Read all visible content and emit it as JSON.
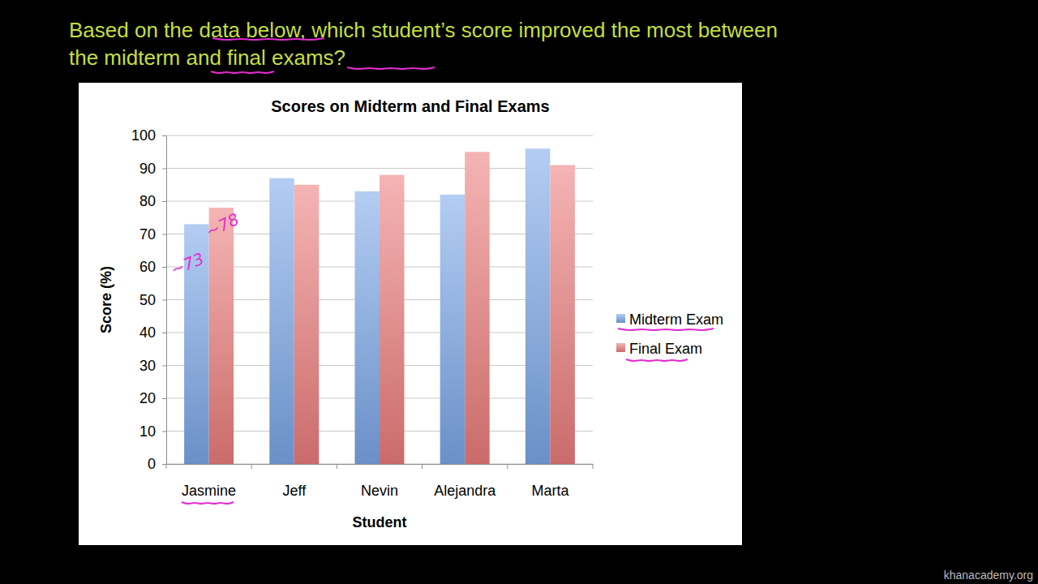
{
  "question": "Based on the data below, which student’s score improved the most between the midterm and final exams?",
  "watermark": "khanacademy.org",
  "chart_data": {
    "type": "bar",
    "title": "Scores on Midterm and Final Exams",
    "x_label": "Student",
    "y_label": "Score (%)",
    "categories": [
      "Jasmine",
      "Jeff",
      "Nevin",
      "Alejandra",
      "Marta"
    ],
    "series": [
      {
        "name": "Midterm Exam",
        "color": "#7ca9eb",
        "values": [
          73,
          87,
          83,
          82,
          96
        ]
      },
      {
        "name": "Final Exam",
        "color": "#ee7e7e",
        "values": [
          78,
          85,
          88,
          95,
          91
        ]
      }
    ],
    "ylim": [
      0,
      100
    ],
    "yticks": [
      0,
      10,
      20,
      30,
      40,
      50,
      60,
      70,
      80,
      90,
      100
    ],
    "grid": true,
    "legend": "right",
    "annotations": [
      "~73",
      "~78"
    ]
  }
}
